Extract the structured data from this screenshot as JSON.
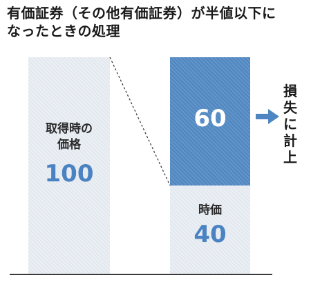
{
  "title": {
    "line1": "有価証券（その他有価証券）が半値以下に",
    "line2": "なったときの処理"
  },
  "left_bar": {
    "label_line1": "取得時の",
    "label_line2": "価格",
    "value": "100"
  },
  "right_bar": {
    "loss_value": "60",
    "current_label": "時価",
    "current_value": "40"
  },
  "loss_note": [
    "損",
    "失",
    "に",
    "計",
    "上"
  ],
  "colors": {
    "accent": "#4e86c1",
    "pale_bar": "#e2e8ef",
    "number_blue": "#4a82c2"
  }
}
